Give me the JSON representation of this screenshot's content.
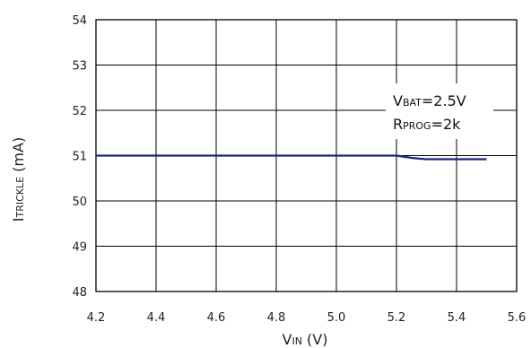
{
  "chart_data": {
    "type": "line",
    "xlabel": {
      "main": "V",
      "sub": "IN",
      "unit": " (V)"
    },
    "ylabel": {
      "main": "I",
      "sub": "TRICKLE",
      "unit": " (mA)"
    },
    "xlim": [
      4.2,
      5.6
    ],
    "ylim": [
      48,
      54
    ],
    "x_ticks": [
      "4.2",
      "4.4",
      "4.6",
      "4.8",
      "5.0",
      "5.2",
      "5.4",
      "5.6"
    ],
    "y_ticks": [
      "48",
      "49",
      "50",
      "51",
      "52",
      "53",
      "54"
    ],
    "grid": true,
    "series": [
      {
        "color": "#1a237e",
        "x": [
          4.2,
          4.4,
          4.6,
          4.8,
          5.0,
          5.2,
          5.22,
          5.25,
          5.28,
          5.3,
          5.4,
          5.5
        ],
        "y": [
          51.0,
          51.0,
          51.0,
          51.0,
          51.0,
          51.0,
          50.98,
          50.95,
          50.93,
          50.92,
          50.92,
          50.92
        ]
      }
    ],
    "annotation": {
      "line1": {
        "main": "V",
        "sub": "BAT",
        "rest": "=2.5V"
      },
      "line2": {
        "main": "R",
        "sub": "PROG",
        "rest": "=2k"
      }
    }
  }
}
